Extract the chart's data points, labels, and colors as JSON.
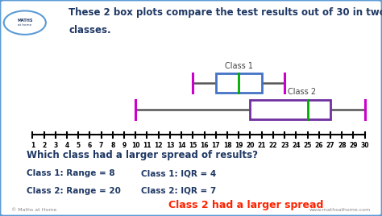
{
  "title_line1": "These 2 box plots compare the test results out of 30 in two",
  "title_line2": "classes.",
  "xmin": 1,
  "xmax": 30,
  "class1_label": "Class 1",
  "class2_label": "Class 2",
  "class1": {
    "min": 15,
    "q1": 17,
    "median": 19,
    "q3": 21,
    "max": 23,
    "box_color": "#4472c4",
    "whisker_color": "#cc00cc",
    "median_color": "#00aa00"
  },
  "class2": {
    "min": 10,
    "q1": 20,
    "median": 25,
    "q3": 27,
    "max": 30,
    "box_color": "#7030a0",
    "whisker_color": "#cc00cc",
    "median_color": "#00aa00"
  },
  "question": "Which class had a larger spread of results?",
  "stat_line1a": "Class 1: Range = 8",
  "stat_line1b": "Class 1: IQR = 4",
  "stat_line2a": "Class 2: Range = 20",
  "stat_line2b": "Class 2: IQR = 7",
  "answer": "Class 2 had a larger spread",
  "answer_color": "#ff2200",
  "bg_color": "#ffffff",
  "border_color": "#5b9bd5",
  "footer_left": "© Maths at Home",
  "footer_right": "www.mathsathome.com",
  "title_color": "#1f3864",
  "stats_color": "#1f3864",
  "question_color": "#1f3864"
}
